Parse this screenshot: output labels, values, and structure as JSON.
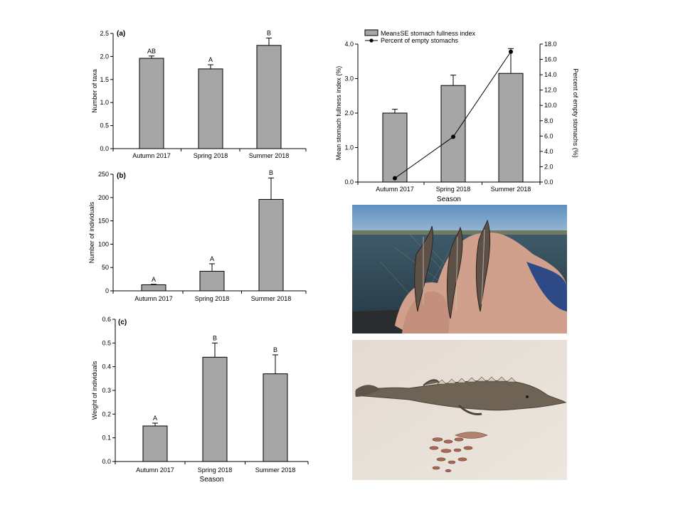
{
  "colors": {
    "bar_fill": "#a6a6a6",
    "bar_stroke": "#000000",
    "axis": "#000000",
    "line": "#000000",
    "water": "#2f4a58",
    "sky": "#6a98c2",
    "sand": "#e6ddd1",
    "fish": "#6e6358"
  },
  "photos": [
    {
      "name": "photo-juvenile-sturgeons-in-hand",
      "icon": "photo-icon"
    },
    {
      "name": "photo-sturgeon-with-stomach-contents",
      "icon": "photo-icon"
    }
  ],
  "chart_data": [
    {
      "type": "bar",
      "panel": "(a)",
      "categories": [
        "Autumn 2017",
        "Spring 2018",
        "Summer 2018"
      ],
      "values": [
        1.96,
        1.73,
        2.24
      ],
      "errors": [
        0.05,
        0.09,
        0.16
      ],
      "letters": [
        "AB",
        "A",
        "B"
      ],
      "xlabel": "",
      "ylabel": "Number of taxa",
      "ylim": [
        0,
        2.5
      ],
      "yticks": [
        "0.0",
        "0.5",
        "1.0",
        "1.5",
        "2.0",
        "2.5"
      ]
    },
    {
      "type": "bar",
      "panel": "(b)",
      "categories": [
        "Autumn 2017",
        "Spring 2018",
        "Summer 2018"
      ],
      "values": [
        13,
        42,
        196
      ],
      "errors": [
        1,
        16,
        46
      ],
      "letters": [
        "A",
        "A",
        "B"
      ],
      "xlabel": "",
      "ylabel": "Number of individuals",
      "ylim": [
        0,
        250
      ],
      "yticks": [
        "0",
        "50",
        "100",
        "150",
        "200",
        "250"
      ]
    },
    {
      "type": "bar",
      "panel": "(c)",
      "categories": [
        "Autumn 2017",
        "Spring 2018",
        "Summer 2018"
      ],
      "values": [
        0.15,
        0.44,
        0.37
      ],
      "errors": [
        0.012,
        0.06,
        0.08
      ],
      "letters": [
        "A",
        "B",
        "B"
      ],
      "xlabel": "Season",
      "ylabel": "Weight of individuals",
      "ylim": [
        0,
        0.6
      ],
      "yticks": [
        "0.0",
        "0.1",
        "0.2",
        "0.3",
        "0.4",
        "0.5",
        "0.6"
      ]
    },
    {
      "type": "bar",
      "categories": [
        "Autumn 2017",
        "Spring 2018",
        "Summer 2018"
      ],
      "xlabel": "Season",
      "legend": [
        "Mean±SE stomach fullness index",
        "Percent of empty stomachs"
      ],
      "legend_position": "top-left",
      "series": [
        {
          "name": "Mean±SE stomach fullness index",
          "kind": "bar",
          "axis": "left",
          "values": [
            2.0,
            2.8,
            3.15
          ],
          "errors": [
            0.11,
            0.3,
            0.72
          ]
        },
        {
          "name": "Percent of empty stomachs",
          "kind": "line",
          "axis": "right",
          "values": [
            0.5,
            5.9,
            17.0
          ]
        }
      ],
      "ylabel_left": "Mean stomach fullness index (%)",
      "ylabel_right": "Percent of empty stomachs (%)",
      "ylim_left": [
        0,
        4.0
      ],
      "ylim_right": [
        0,
        18.0
      ],
      "yticks_left": [
        "0.0",
        "1.0",
        "2.0",
        "3.0",
        "4.0"
      ],
      "yticks_right": [
        "0.0",
        "2.0",
        "4.0",
        "6.0",
        "8.0",
        "10.0",
        "12.0",
        "14.0",
        "16.0",
        "18.0"
      ]
    }
  ]
}
